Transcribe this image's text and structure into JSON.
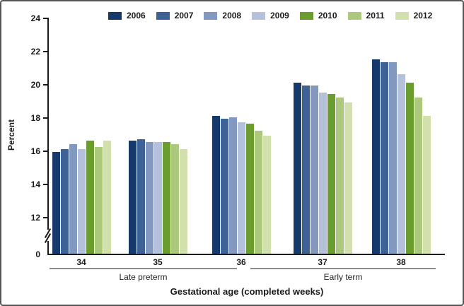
{
  "figure": {
    "y_axis_title": "Percent",
    "x_axis_title": "Gestational age (completed weeks)"
  },
  "chart_data": {
    "type": "bar",
    "title": "",
    "xlabel": "Gestational age (completed weeks)",
    "ylabel": "Percent",
    "categories": [
      "34",
      "35",
      "36",
      "37",
      "38"
    ],
    "category_groups": [
      {
        "label": "Late preterm",
        "categories": [
          "34",
          "35",
          "36"
        ]
      },
      {
        "label": "Early term",
        "categories": [
          "37",
          "38"
        ]
      }
    ],
    "legend_position": "top",
    "grid": false,
    "ylim": [
      0,
      24
    ],
    "y_ticks": [
      0,
      12,
      14,
      16,
      18,
      20,
      22,
      24
    ],
    "axis_break": "y-axis broken between 0 and 12",
    "series": [
      {
        "name": "2006",
        "color": "#16396B",
        "values": [
          15.9,
          16.6,
          18.1,
          20.1,
          21.5
        ]
      },
      {
        "name": "2007",
        "color": "#3E6295",
        "values": [
          16.1,
          16.7,
          17.9,
          19.9,
          21.3
        ]
      },
      {
        "name": "2008",
        "color": "#8398BF",
        "values": [
          16.4,
          16.5,
          18.0,
          19.9,
          21.3
        ]
      },
      {
        "name": "2009",
        "color": "#B5C1DB",
        "values": [
          16.1,
          16.5,
          17.7,
          19.5,
          20.6
        ]
      },
      {
        "name": "2010",
        "color": "#6B9C2E",
        "values": [
          16.6,
          16.5,
          17.6,
          19.4,
          20.1
        ]
      },
      {
        "name": "2011",
        "color": "#ABC87D",
        "values": [
          16.2,
          16.4,
          17.2,
          19.2,
          19.2
        ]
      },
      {
        "name": "2012",
        "color": "#D2E0AE",
        "values": [
          16.6,
          16.1,
          16.9,
          18.9,
          18.1
        ]
      }
    ]
  }
}
